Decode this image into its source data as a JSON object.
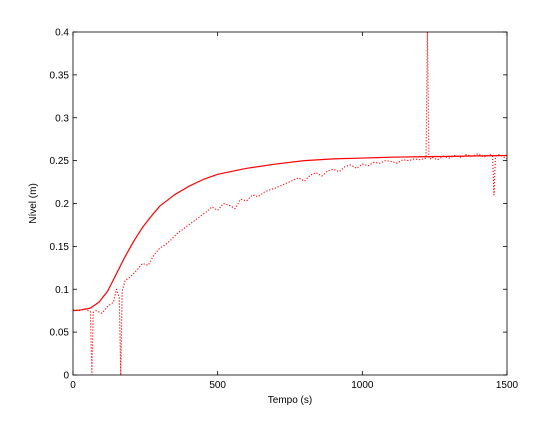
{
  "chart_data": {
    "type": "line",
    "title": "",
    "xlabel": "Tempo (s)",
    "ylabel": "Nível (m)",
    "xlim": [
      0,
      1500
    ],
    "ylim": [
      0,
      0.4
    ],
    "x_ticks": [
      0,
      500,
      1000,
      1500
    ],
    "y_ticks": [
      0,
      0.05,
      0.1,
      0.15,
      0.2,
      0.25,
      0.3,
      0.35,
      0.4
    ],
    "x_tick_labels": [
      "0",
      "500",
      "1000",
      "1500"
    ],
    "y_tick_labels": [
      "0",
      "0.05",
      "0.1",
      "0.15",
      "0.2",
      "0.25",
      "0.3",
      "0.35",
      "0.4"
    ],
    "grid": false,
    "legend": "none",
    "colors": {
      "series": "#ff0000",
      "axes": "#000000",
      "background": "#ffffff"
    },
    "series": [
      {
        "style": "solid",
        "x": [
          0,
          30,
          60,
          90,
          120,
          150,
          180,
          210,
          240,
          270,
          300,
          350,
          400,
          450,
          500,
          600,
          700,
          800,
          900,
          1000,
          1100,
          1200,
          1300,
          1400,
          1500
        ],
        "y": [
          0.075,
          0.076,
          0.078,
          0.085,
          0.098,
          0.118,
          0.138,
          0.156,
          0.172,
          0.185,
          0.197,
          0.21,
          0.22,
          0.228,
          0.234,
          0.241,
          0.246,
          0.25,
          0.252,
          0.253,
          0.254,
          0.2545,
          0.255,
          0.2555,
          0.256
        ]
      },
      {
        "style": "dotted",
        "x": [
          0,
          20,
          40,
          60,
          65,
          70,
          80,
          100,
          120,
          140,
          150,
          160,
          165,
          170,
          180,
          200,
          220,
          240,
          260,
          280,
          300,
          320,
          340,
          360,
          380,
          400,
          420,
          440,
          460,
          480,
          500,
          520,
          540,
          560,
          580,
          600,
          620,
          640,
          660,
          680,
          700,
          720,
          740,
          760,
          780,
          800,
          820,
          840,
          860,
          880,
          900,
          920,
          940,
          960,
          980,
          1000,
          1020,
          1040,
          1060,
          1080,
          1100,
          1120,
          1140,
          1160,
          1180,
          1200,
          1220,
          1225,
          1230,
          1235,
          1240,
          1260,
          1280,
          1300,
          1320,
          1340,
          1360,
          1380,
          1400,
          1420,
          1440,
          1450,
          1455,
          1460,
          1470,
          1480,
          1500
        ],
        "y": [
          0.076,
          0.075,
          0.077,
          0.074,
          0,
          0.073,
          0.075,
          0.072,
          0.08,
          0.085,
          0.1,
          0.09,
          0,
          0.098,
          0.11,
          0.115,
          0.122,
          0.13,
          0.128,
          0.14,
          0.148,
          0.152,
          0.158,
          0.165,
          0.17,
          0.175,
          0.18,
          0.185,
          0.19,
          0.196,
          0.192,
          0.2,
          0.198,
          0.194,
          0.205,
          0.203,
          0.21,
          0.208,
          0.213,
          0.216,
          0.218,
          0.221,
          0.224,
          0.227,
          0.23,
          0.226,
          0.233,
          0.236,
          0.232,
          0.238,
          0.24,
          0.237,
          0.243,
          0.245,
          0.241,
          0.246,
          0.244,
          0.248,
          0.247,
          0.25,
          0.249,
          0.247,
          0.251,
          0.25,
          0.252,
          0.251,
          0.253,
          0.4,
          0.253,
          0.252,
          0.254,
          0.251,
          0.255,
          0.253,
          0.256,
          0.254,
          0.257,
          0.255,
          0.258,
          0.254,
          0.257,
          0.256,
          0.21,
          0.255,
          0.257,
          0.256,
          0.252
        ]
      }
    ]
  }
}
